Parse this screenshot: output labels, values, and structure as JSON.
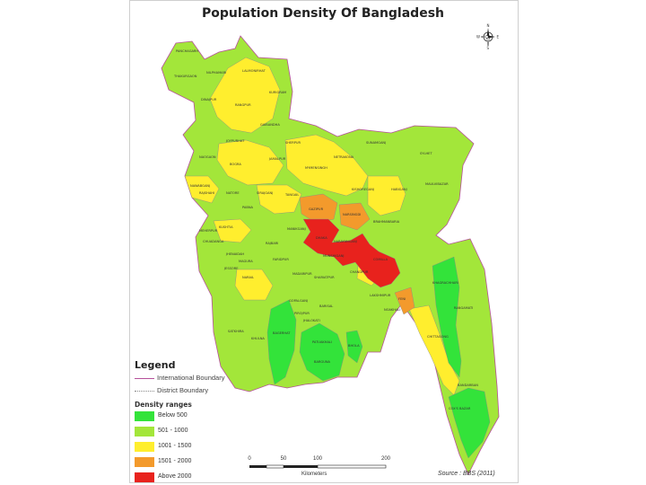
{
  "title": "Population Density Of Bangladesh",
  "legend": {
    "title": "Legend",
    "boundaries": [
      {
        "label": "International Boundary",
        "color": "#b5519a"
      },
      {
        "label": "District Boundary",
        "color": "#888888"
      }
    ],
    "ranges_title": "Density ranges",
    "ranges": [
      {
        "label": "Below 500",
        "color": "#33e33a"
      },
      {
        "label": "501 - 1000",
        "color": "#a3e63a"
      },
      {
        "label": "1001 - 1500",
        "color": "#ffee2e"
      },
      {
        "label": "1501 - 2000",
        "color": "#f39a2c"
      },
      {
        "label": "Above 2000",
        "color": "#e8221d"
      }
    ]
  },
  "scale": {
    "ticks": [
      "0",
      "50",
      "100",
      "200"
    ],
    "unit": "Kilometers"
  },
  "source": "Source : BBS (2011)",
  "compass": {
    "n": "N",
    "s": "S",
    "e": "E",
    "w": "W"
  },
  "districts": [
    {
      "name": "PANCHAGARH",
      "value": "",
      "category": 1
    },
    {
      "name": "THAKURGAON",
      "value": "",
      "category": 1
    },
    {
      "name": "NILPHAMARI",
      "value": "",
      "category": 2
    },
    {
      "name": "LALMONIRHAT",
      "value": "",
      "category": 2
    },
    {
      "name": "KURIGRAM",
      "value": "",
      "category": 1
    },
    {
      "name": "DINAJPUR",
      "value": "",
      "category": 1
    },
    {
      "name": "RANGPUR",
      "value": "",
      "category": 2
    },
    {
      "name": "GAIBANDHA",
      "value": "",
      "category": 2
    },
    {
      "name": "JOYPURHAT",
      "value": "",
      "category": 2
    },
    {
      "name": "NAOGAON",
      "value": "",
      "category": 1
    },
    {
      "name": "BOGRA",
      "value": "",
      "category": 2
    },
    {
      "name": "SHERPUR",
      "value": "",
      "category": 1
    },
    {
      "name": "JAMALPUR",
      "value": "",
      "category": 2
    },
    {
      "name": "NAWABGANJ",
      "value": "",
      "category": 1
    },
    {
      "name": "RAJSHAHI",
      "value": "",
      "category": 2
    },
    {
      "name": "NATORE",
      "value": "",
      "category": 1
    },
    {
      "name": "SIRAJGANJ",
      "value": "",
      "category": 2
    },
    {
      "name": "MYMENSINGH",
      "value": "",
      "category": 1
    },
    {
      "name": "NETRAKONA",
      "value": "",
      "category": 1
    },
    {
      "name": "SUNAMGANJ",
      "value": "",
      "category": 1
    },
    {
      "name": "SYLHET",
      "value": "",
      "category": 1
    },
    {
      "name": "KISHOREGANJ",
      "value": "",
      "category": 2
    },
    {
      "name": "HABIGANJ",
      "value": "",
      "category": 1
    },
    {
      "name": "MAULVIBAZAR",
      "value": "",
      "category": 1
    },
    {
      "name": "TANGAIL",
      "value": "",
      "category": 2
    },
    {
      "name": "GAZIPUR",
      "value": "",
      "category": 3
    },
    {
      "name": "NARSINGDI",
      "value": "",
      "category": 3
    },
    {
      "name": "BRAHMANBARIA",
      "value": "",
      "category": 2
    },
    {
      "name": "PABNA",
      "value": "",
      "category": 2
    },
    {
      "name": "KUSHTIA",
      "value": "",
      "category": 2
    },
    {
      "name": "MEHERPUR",
      "value": "",
      "category": 1
    },
    {
      "name": "CHUADANGA",
      "value": "",
      "category": 1
    },
    {
      "name": "JHENAIDAH",
      "value": "",
      "category": 1
    },
    {
      "name": "MAGURA",
      "value": "",
      "category": 1
    },
    {
      "name": "RAJBARI",
      "value": "",
      "category": 1
    },
    {
      "name": "MANIKGANJ",
      "value": "",
      "category": 1
    },
    {
      "name": "DHAKA",
      "value": "",
      "category": 4
    },
    {
      "name": "NARAYANGANJ",
      "value": "",
      "category": 4
    },
    {
      "name": "MUNSHIGANJ",
      "value": "",
      "category": 4
    },
    {
      "name": "COMILLA",
      "value": "",
      "category": 4
    },
    {
      "name": "JESSORE",
      "value": "",
      "category": 1
    },
    {
      "name": "NARAIL",
      "value": "",
      "category": 1
    },
    {
      "name": "FARIDPUR",
      "value": "",
      "category": 1
    },
    {
      "name": "MADARIPUR",
      "value": "",
      "category": 1
    },
    {
      "name": "SHARIATPUR",
      "value": "",
      "category": 1
    },
    {
      "name": "CHANDPUR",
      "value": "",
      "category": 2
    },
    {
      "name": "LAKSHMIPUR",
      "value": "",
      "category": 1
    },
    {
      "name": "NOAKHALI",
      "value": "",
      "category": 1
    },
    {
      "name": "FENI",
      "value": "",
      "category": 3
    },
    {
      "name": "SATKHIRA",
      "value": "",
      "category": 1
    },
    {
      "name": "KHULNA",
      "value": "",
      "category": 1
    },
    {
      "name": "BAGERHAT",
      "value": "",
      "category": 0
    },
    {
      "name": "GOPALGANJ",
      "value": "",
      "category": 1
    },
    {
      "name": "PIROJPUR",
      "value": "",
      "category": 1
    },
    {
      "name": "JHALOKATI",
      "value": "",
      "category": 1
    },
    {
      "name": "BARISAL",
      "value": "",
      "category": 1
    },
    {
      "name": "BHOLA",
      "value": "",
      "category": 1
    },
    {
      "name": "PATUAKHALI",
      "value": "",
      "category": 0
    },
    {
      "name": "BARGUNA",
      "value": "",
      "category": 0
    },
    {
      "name": "KHAGRACHHARI",
      "value": "",
      "category": 0
    },
    {
      "name": "RANGAMATI",
      "value": "",
      "category": 0
    },
    {
      "name": "CHITTAGONG",
      "value": "",
      "category": 2
    },
    {
      "name": "BANDARBAN",
      "value": "",
      "category": 0
    },
    {
      "name": "COX'S BAZAR",
      "value": "",
      "category": 1
    }
  ]
}
